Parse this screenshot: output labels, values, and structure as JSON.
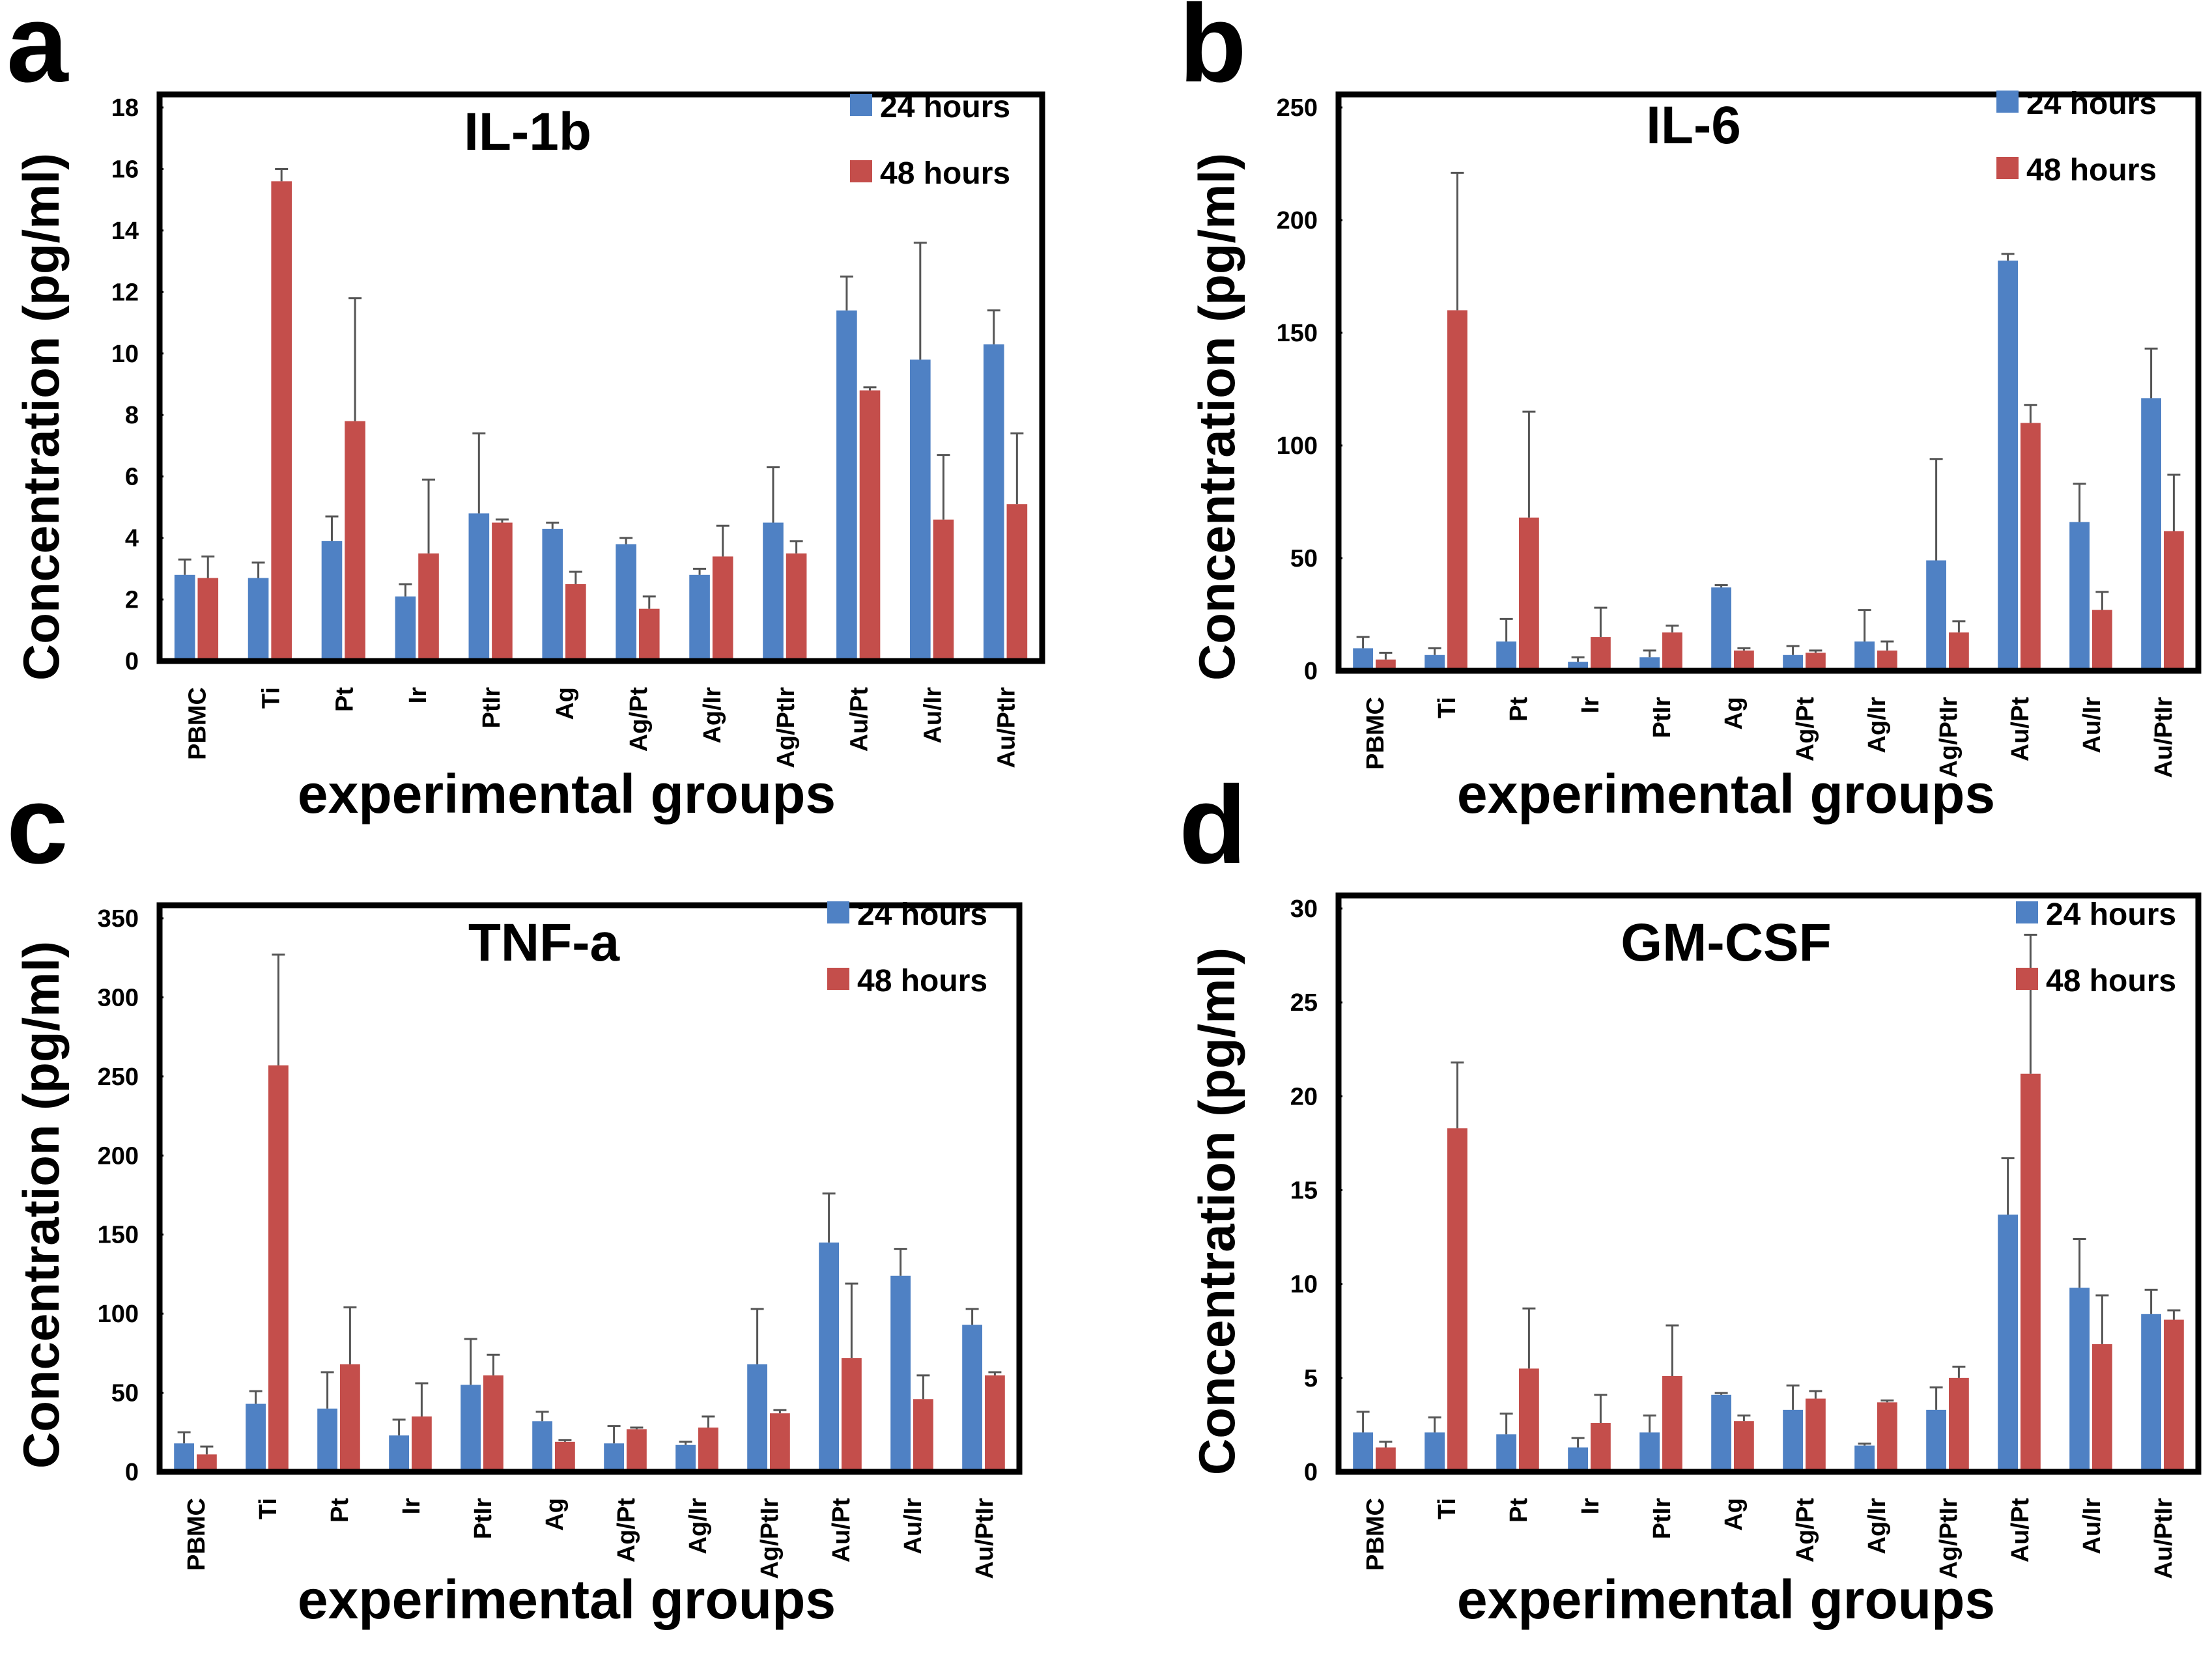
{
  "colors": {
    "s24": "#4f81c4",
    "s48": "#c44e4b"
  },
  "chart_data": [
    {
      "panel": "a",
      "type": "bar",
      "title": "IL-1b",
      "xlabel": "experimental groups",
      "ylabel": "Concentration (pg/ml)",
      "ylim": [
        0,
        18
      ],
      "yticks": [
        0,
        2,
        4,
        6,
        8,
        10,
        12,
        14,
        16,
        18
      ],
      "legend_position": "top-right",
      "categories": [
        "PBMC",
        "Ti",
        "Pt",
        "Ir",
        "PtIr",
        "Ag",
        "Ag/Pt",
        "Ag/Ir",
        "Ag/PtIr",
        "Au/Pt",
        "Au/Ir",
        "Au/PtIr"
      ],
      "series": [
        {
          "name": "24 hours",
          "values": [
            2.8,
            2.7,
            3.9,
            2.1,
            4.8,
            4.3,
            3.8,
            2.8,
            4.5,
            11.4,
            9.8,
            10.3
          ],
          "errors": [
            0.5,
            0.5,
            0.8,
            0.4,
            2.6,
            0.2,
            0.2,
            0.2,
            1.8,
            1.1,
            3.8,
            1.1
          ]
        },
        {
          "name": "48 hours",
          "values": [
            2.7,
            15.6,
            7.8,
            3.5,
            4.5,
            2.5,
            1.7,
            3.4,
            3.5,
            8.8,
            4.6,
            5.1
          ],
          "errors": [
            0.7,
            0.4,
            4.0,
            2.4,
            0.1,
            0.4,
            0.4,
            1.0,
            0.4,
            0.1,
            2.1,
            2.3
          ]
        }
      ]
    },
    {
      "panel": "b",
      "type": "bar",
      "title": "IL-6",
      "xlabel": "experimental groups",
      "ylabel": "Concentration (pg/ml)",
      "ylim": [
        0,
        250
      ],
      "yticks": [
        0,
        50,
        100,
        150,
        200,
        250
      ],
      "legend_position": "top-right",
      "categories": [
        "PBMC",
        "Ti",
        "Pt",
        "Ir",
        "PtIr",
        "Ag",
        "Ag/Pt",
        "Ag/Ir",
        "Ag/PtIr",
        "Au/Pt",
        "Au/Ir",
        "Au/PtIr"
      ],
      "series": [
        {
          "name": "24 hours",
          "values": [
            10,
            7,
            13,
            4,
            6,
            37,
            7,
            13,
            49,
            182,
            66,
            121
          ],
          "errors": [
            5,
            3,
            10,
            2,
            3,
            1,
            4,
            14,
            45,
            3,
            17,
            22
          ]
        },
        {
          "name": "48 hours",
          "values": [
            5,
            160,
            68,
            15,
            17,
            9,
            8,
            9,
            17,
            110,
            27,
            62
          ],
          "errors": [
            3,
            61,
            47,
            13,
            3,
            1,
            1,
            4,
            5,
            8,
            8,
            25
          ]
        }
      ]
    },
    {
      "panel": "c",
      "type": "bar",
      "title": "TNF-a",
      "xlabel": "experimental groups",
      "ylabel": "Concentration (pg/ml)",
      "ylim": [
        0,
        350
      ],
      "yticks": [
        0,
        50,
        100,
        150,
        200,
        250,
        300,
        350
      ],
      "legend_position": "top-right",
      "categories": [
        "PBMC",
        "Ti",
        "Pt",
        "Ir",
        "PtIr",
        "Ag",
        "Ag/Pt",
        "Ag/Ir",
        "Ag/PtIr",
        "Au/Pt",
        "Au/Ir",
        "Au/PtIr"
      ],
      "series": [
        {
          "name": "24 hours",
          "values": [
            18,
            43,
            40,
            23,
            55,
            32,
            18,
            17,
            68,
            145,
            124,
            93
          ],
          "errors": [
            7,
            8,
            23,
            10,
            29,
            6,
            11,
            2,
            35,
            31,
            17,
            10
          ]
        },
        {
          "name": "48 hours",
          "values": [
            11,
            257,
            68,
            35,
            61,
            19,
            27,
            28,
            37,
            72,
            46,
            61
          ],
          "errors": [
            5,
            70,
            36,
            21,
            13,
            1,
            1,
            7,
            2,
            47,
            15,
            2
          ]
        }
      ]
    },
    {
      "panel": "d",
      "type": "bar",
      "title": "GM-CSF",
      "xlabel": "experimental groups",
      "ylabel": "Concentration (pg/ml)",
      "ylim": [
        0,
        30
      ],
      "yticks": [
        0,
        5,
        10,
        15,
        20,
        25,
        30
      ],
      "legend_position": "top-right",
      "categories": [
        "PBMC",
        "Ti",
        "Pt",
        "Ir",
        "PtIr",
        "Ag",
        "Ag/Pt",
        "Ag/Ir",
        "Ag/PtIr",
        "Au/Pt",
        "Au/Ir",
        "Au/PtIr"
      ],
      "series": [
        {
          "name": "24 hours",
          "values": [
            2.1,
            2.1,
            2.0,
            1.3,
            2.1,
            4.1,
            3.3,
            1.4,
            3.3,
            13.7,
            9.8,
            8.4
          ],
          "errors": [
            1.1,
            0.8,
            1.1,
            0.5,
            0.9,
            0.1,
            1.3,
            0.1,
            1.2,
            3.0,
            2.6,
            1.3
          ]
        },
        {
          "name": "48 hours",
          "values": [
            1.3,
            18.3,
            5.5,
            2.6,
            5.1,
            2.7,
            3.9,
            3.7,
            5.0,
            21.2,
            6.8,
            8.1
          ],
          "errors": [
            0.3,
            3.5,
            3.2,
            1.5,
            2.7,
            0.3,
            0.4,
            0.1,
            0.6,
            7.4,
            2.6,
            0.5
          ]
        }
      ]
    }
  ]
}
